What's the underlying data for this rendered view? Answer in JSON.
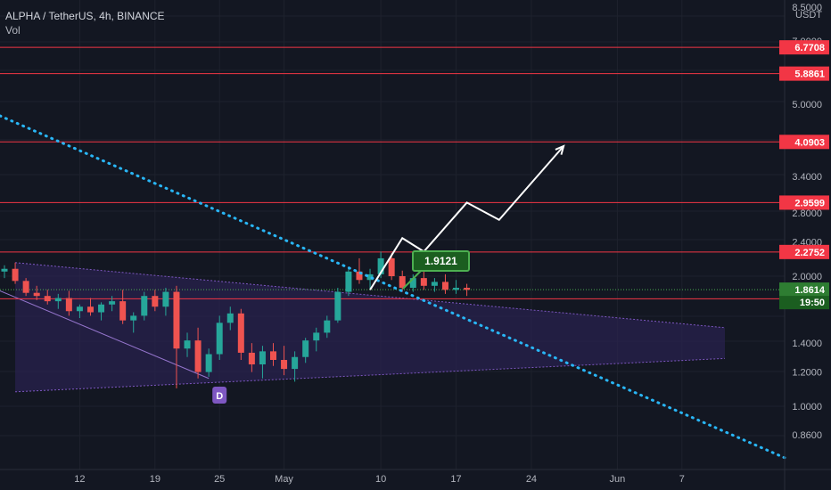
{
  "header": {
    "title": "ALPHA / TetherUS, 4h, BINANCE",
    "indicator": "Vol"
  },
  "colors": {
    "background": "#131722",
    "up": "#26a69a",
    "down": "#ef5350",
    "level_line": "#f23645",
    "trend_line": "#29b6f6",
    "channel_fill": "#2a2250",
    "price_line": "#4caf50",
    "projection": "#ffffff",
    "marker": "#7e57c2",
    "callout": "#1b5e20"
  },
  "chart_data": {
    "type": "candlestick",
    "symbol": "ALPHA / TetherUS",
    "interval": "4h",
    "exchange": "BINANCE",
    "y_scale": "log",
    "ylim": [
      0.76,
      8.5
    ],
    "y_ticks": [
      "8.5000",
      "7.0000",
      "5.0000",
      "3.4000",
      "2.8000",
      "2.4000",
      "2.0000",
      "1.4000",
      "1.2000",
      "1.0000",
      "0.8600"
    ],
    "currency_label": "USDT",
    "x_ticks": [
      "12",
      "19",
      "25",
      "May",
      "10",
      "17",
      "24",
      "Jun",
      "7"
    ],
    "levels": [
      {
        "value": 6.7708,
        "label": "6.7708"
      },
      {
        "value": 5.8861,
        "label": "5.8861"
      },
      {
        "value": 4.0903,
        "label": "4.0903"
      },
      {
        "value": 2.9599,
        "label": "2.9599"
      },
      {
        "value": 2.2752,
        "label": "2.2752"
      },
      {
        "value": 1.773,
        "label": "1.7730"
      }
    ],
    "current_price": {
      "value": 1.8614,
      "label": "1.8614",
      "countdown": "19:50"
    },
    "trendline": {
      "from": {
        "date": "2021-04-04",
        "value": 4.7
      },
      "to": {
        "date": "2021-06-11",
        "value": 0.76
      }
    },
    "channel": {
      "upper": [
        {
          "date": "2021-04-06",
          "value": 2.15
        },
        {
          "date": "2021-06-11",
          "value": 1.52
        }
      ],
      "lower": [
        {
          "date": "2021-04-06",
          "value": 1.08
        },
        {
          "date": "2021-06-11",
          "value": 1.29
        }
      ]
    },
    "projection": [
      {
        "date": "2021-05-09",
        "value": 1.86
      },
      {
        "date": "2021-05-12",
        "value": 2.45
      },
      {
        "date": "2021-05-14",
        "value": 2.28
      },
      {
        "date": "2021-05-18",
        "value": 2.96
      },
      {
        "date": "2021-05-21",
        "value": 2.7
      },
      {
        "date": "2021-05-27",
        "value": 4.0
      }
    ],
    "callout": {
      "label": "1.9121",
      "value": 1.9121
    },
    "marker": {
      "label": "D",
      "date": "2021-04-25"
    },
    "candles": [
      [
        "2021-04-05",
        2.05,
        2.12,
        1.98,
        2.08
      ],
      [
        "2021-04-06",
        2.08,
        2.15,
        1.92,
        1.95
      ],
      [
        "2021-04-07",
        1.95,
        1.98,
        1.8,
        1.83
      ],
      [
        "2021-04-08",
        1.83,
        1.9,
        1.76,
        1.8
      ],
      [
        "2021-04-09",
        1.8,
        1.86,
        1.72,
        1.75
      ],
      [
        "2021-04-10",
        1.75,
        1.82,
        1.68,
        1.78
      ],
      [
        "2021-04-11",
        1.78,
        1.85,
        1.62,
        1.66
      ],
      [
        "2021-04-12",
        1.66,
        1.72,
        1.6,
        1.7
      ],
      [
        "2021-04-13",
        1.7,
        1.78,
        1.62,
        1.65
      ],
      [
        "2021-04-14",
        1.65,
        1.74,
        1.58,
        1.72
      ],
      [
        "2021-04-15",
        1.72,
        1.8,
        1.66,
        1.75
      ],
      [
        "2021-04-16",
        1.75,
        1.86,
        1.55,
        1.58
      ],
      [
        "2021-04-17",
        1.58,
        1.65,
        1.48,
        1.62
      ],
      [
        "2021-04-18",
        1.62,
        1.84,
        1.58,
        1.8
      ],
      [
        "2021-04-19",
        1.8,
        1.86,
        1.66,
        1.7
      ],
      [
        "2021-04-20",
        1.7,
        1.88,
        1.62,
        1.84
      ],
      [
        "2021-04-21",
        1.84,
        1.9,
        1.1,
        1.36
      ],
      [
        "2021-04-22",
        1.36,
        1.48,
        1.3,
        1.42
      ],
      [
        "2021-04-23",
        1.42,
        1.52,
        1.16,
        1.2
      ],
      [
        "2021-04-24",
        1.2,
        1.36,
        1.17,
        1.32
      ],
      [
        "2021-04-25",
        1.32,
        1.62,
        1.28,
        1.56
      ],
      [
        "2021-04-26",
        1.56,
        1.7,
        1.5,
        1.64
      ],
      [
        "2021-04-27",
        1.64,
        1.68,
        1.28,
        1.33
      ],
      [
        "2021-04-28",
        1.33,
        1.4,
        1.2,
        1.25
      ],
      [
        "2021-04-29",
        1.25,
        1.38,
        1.16,
        1.34
      ],
      [
        "2021-04-30",
        1.34,
        1.4,
        1.24,
        1.28
      ],
      [
        "2021-05-01",
        1.28,
        1.38,
        1.18,
        1.22
      ],
      [
        "2021-05-02",
        1.22,
        1.34,
        1.14,
        1.3
      ],
      [
        "2021-05-03",
        1.3,
        1.44,
        1.26,
        1.42
      ],
      [
        "2021-05-04",
        1.42,
        1.52,
        1.34,
        1.48
      ],
      [
        "2021-05-05",
        1.48,
        1.62,
        1.44,
        1.58
      ],
      [
        "2021-05-06",
        1.58,
        1.88,
        1.56,
        1.84
      ],
      [
        "2021-05-07",
        1.84,
        2.1,
        1.8,
        2.05
      ],
      [
        "2021-05-08",
        2.05,
        2.2,
        1.92,
        1.96
      ],
      [
        "2021-05-09",
        1.96,
        2.08,
        1.86,
        2.02
      ],
      [
        "2021-05-10",
        2.02,
        2.28,
        1.98,
        2.2
      ],
      [
        "2021-05-11",
        2.2,
        2.26,
        1.96,
        2.0
      ],
      [
        "2021-05-12",
        2.0,
        2.06,
        1.84,
        1.88
      ],
      [
        "2021-05-13",
        1.88,
        2.02,
        1.84,
        1.98
      ],
      [
        "2021-05-14",
        1.98,
        2.06,
        1.86,
        1.9
      ],
      [
        "2021-05-15",
        1.9,
        1.98,
        1.84,
        1.94
      ],
      [
        "2021-05-16",
        1.94,
        2.02,
        1.82,
        1.86
      ],
      [
        "2021-05-17",
        1.86,
        1.96,
        1.82,
        1.88
      ],
      [
        "2021-05-18",
        1.88,
        1.92,
        1.8,
        1.86
      ]
    ]
  }
}
